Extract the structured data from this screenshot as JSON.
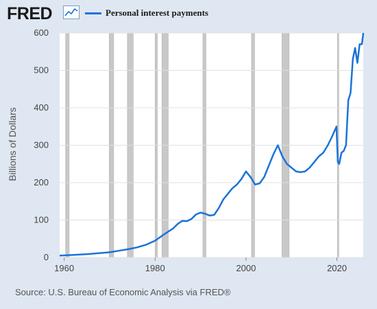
{
  "header": {
    "logo_text": "FRED",
    "logo_icon": "line-chart-icon"
  },
  "footer": {
    "source": "Source: U.S. Bureau of Economic Analysis via FRED®"
  },
  "colors": {
    "background": "#dfe7f2",
    "plot_background": "#ffffff",
    "series": "#1a73d9",
    "recession": "#c8c8c8",
    "grid": "#e0e0e0"
  },
  "chart_data": {
    "type": "line",
    "title": "",
    "xlabel": "",
    "ylabel": "Billions of Dollars",
    "xlim": [
      1959,
      2025.8
    ],
    "ylim": [
      0,
      600
    ],
    "xticks": [
      1960,
      1980,
      2000,
      2020
    ],
    "yticks": [
      0,
      100,
      200,
      300,
      400,
      500,
      600
    ],
    "grid": true,
    "legend_position": "top",
    "series": [
      {
        "name": "Personal interest payments",
        "x": [
          1959,
          1962,
          1965,
          1968,
          1970,
          1972,
          1974,
          1976,
          1978,
          1980,
          1982,
          1984,
          1985,
          1986,
          1987,
          1988,
          1989,
          1990,
          1991,
          1992,
          1993,
          1994,
          1995,
          1996,
          1997,
          1998,
          1999,
          2000,
          2001,
          2002,
          2003,
          2004,
          2005,
          2006,
          2007,
          2008,
          2009,
          2010,
          2011,
          2012,
          2013,
          2014,
          2015,
          2016,
          2017,
          2018,
          2019,
          2019.9,
          2020.2,
          2020.5,
          2021,
          2021.5,
          2022,
          2022.5,
          2023,
          2023.5,
          2024,
          2024.5,
          2025,
          2025.5,
          2025.8
        ],
        "y": [
          5,
          7,
          9,
          12,
          14,
          18,
          22,
          27,
          34,
          45,
          62,
          78,
          90,
          98,
          97,
          103,
          115,
          120,
          117,
          112,
          114,
          132,
          155,
          170,
          185,
          195,
          210,
          230,
          215,
          195,
          198,
          215,
          245,
          275,
          300,
          270,
          250,
          240,
          230,
          228,
          230,
          240,
          255,
          270,
          280,
          300,
          325,
          350,
          255,
          250,
          280,
          285,
          300,
          420,
          440,
          530,
          560,
          520,
          570,
          570,
          600
        ]
      }
    ],
    "recessions": [
      [
        1960.3,
        1961.1
      ],
      [
        1969.9,
        1970.9
      ],
      [
        1973.9,
        1975.2
      ],
      [
        1980.0,
        1980.5
      ],
      [
        1981.5,
        1982.9
      ],
      [
        1990.5,
        1991.2
      ],
      [
        2001.2,
        2001.9
      ],
      [
        2007.9,
        2009.5
      ],
      [
        2020.1,
        2020.3
      ]
    ]
  }
}
